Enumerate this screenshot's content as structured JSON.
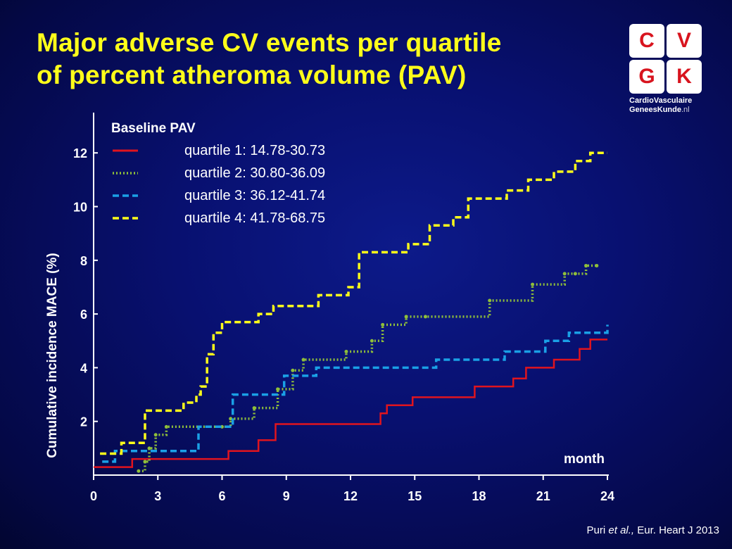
{
  "title": {
    "line1": "Major adverse CV events per quartile",
    "line2": "of percent atheroma volume (PAV)"
  },
  "logo": {
    "letters": [
      "C",
      "V",
      "G",
      "K"
    ],
    "text_line1": "CardioVasculaire",
    "text_line2": "GeneesKunde",
    "text_suffix": ".nl",
    "letter_color": "#d8141e"
  },
  "citation": {
    "author": "Puri",
    "etal": " et al.,",
    "source": " Eur. Heart J 2013"
  },
  "chart_data": {
    "type": "line",
    "title": "",
    "xlabel": "month",
    "ylabel": "Cumulative incidence MACE (%)",
    "xlim": [
      0,
      24
    ],
    "ylim": [
      0,
      13.5
    ],
    "x_ticks": [
      0,
      3,
      6,
      9,
      12,
      15,
      18,
      21,
      24
    ],
    "y_ticks": [
      2,
      4,
      6,
      8,
      10,
      12
    ],
    "grid": false,
    "step": true,
    "legend_title": "Baseline PAV",
    "legend_position": "top-left",
    "series": [
      {
        "name": "quartile 1: 14.78-30.73",
        "color": "#e0141e",
        "dash": "solid",
        "x": [
          0,
          1.8,
          6.3,
          7.7,
          8.5,
          13.4,
          13.7,
          14.9,
          17.8,
          19.6,
          20.2,
          21.5,
          22.7,
          23.2,
          24
        ],
        "y": [
          0.3,
          0.6,
          0.9,
          1.3,
          1.9,
          2.3,
          2.6,
          2.9,
          3.3,
          3.6,
          4.0,
          4.3,
          4.7,
          5.05,
          5.05
        ]
      },
      {
        "name": "quartile 2: 30.80-36.09",
        "color": "#8fbf3a",
        "dash": "dotted",
        "x": [
          2.1,
          2.4,
          2.6,
          2.9,
          3.4,
          6.0,
          6.4,
          7.5,
          8.6,
          9.3,
          9.8,
          11.8,
          13.0,
          13.5,
          14.6,
          15.5,
          18.5,
          20.5,
          22.0,
          22.5,
          23.0,
          23.5
        ],
        "y": [
          0.15,
          0.5,
          1.0,
          1.5,
          1.8,
          1.8,
          2.1,
          2.5,
          3.2,
          3.9,
          4.3,
          4.6,
          5.0,
          5.6,
          5.9,
          5.9,
          6.5,
          7.1,
          7.5,
          7.5,
          7.8,
          7.8
        ],
        "markers": true
      },
      {
        "name": "quartile 3: 36.12-41.74",
        "color": "#1aa0e6",
        "dash": "dashed",
        "x": [
          0.4,
          1.0,
          4.9,
          6.5,
          8.9,
          10.4,
          16.0,
          19.2,
          21.1,
          22.2,
          23.7,
          24.0
        ],
        "y": [
          0.5,
          0.9,
          1.8,
          3.0,
          3.7,
          4.0,
          4.3,
          4.6,
          5.0,
          5.3,
          5.3,
          5.6
        ]
      },
      {
        "name": "quartile 4: 41.78-68.75",
        "color": "#ffff1a",
        "dash": "dashed",
        "x": [
          0.3,
          1.3,
          2.4,
          4.2,
          4.8,
          5.0,
          5.3,
          5.6,
          6.0,
          6.6,
          7.7,
          8.4,
          10.5,
          11.0,
          11.9,
          12.4,
          14.0,
          14.7,
          15.7,
          16.8,
          17.5,
          18.0,
          19.3,
          20.3,
          21.5,
          22.5,
          23.2,
          24.0
        ],
        "y": [
          0.8,
          1.2,
          2.4,
          2.7,
          3.0,
          3.3,
          4.5,
          5.3,
          5.7,
          5.7,
          6.0,
          6.3,
          6.7,
          6.7,
          7.0,
          8.3,
          8.3,
          8.6,
          9.3,
          9.6,
          10.3,
          10.3,
          10.6,
          11.0,
          11.3,
          11.7,
          12.0,
          12.0
        ]
      }
    ]
  }
}
